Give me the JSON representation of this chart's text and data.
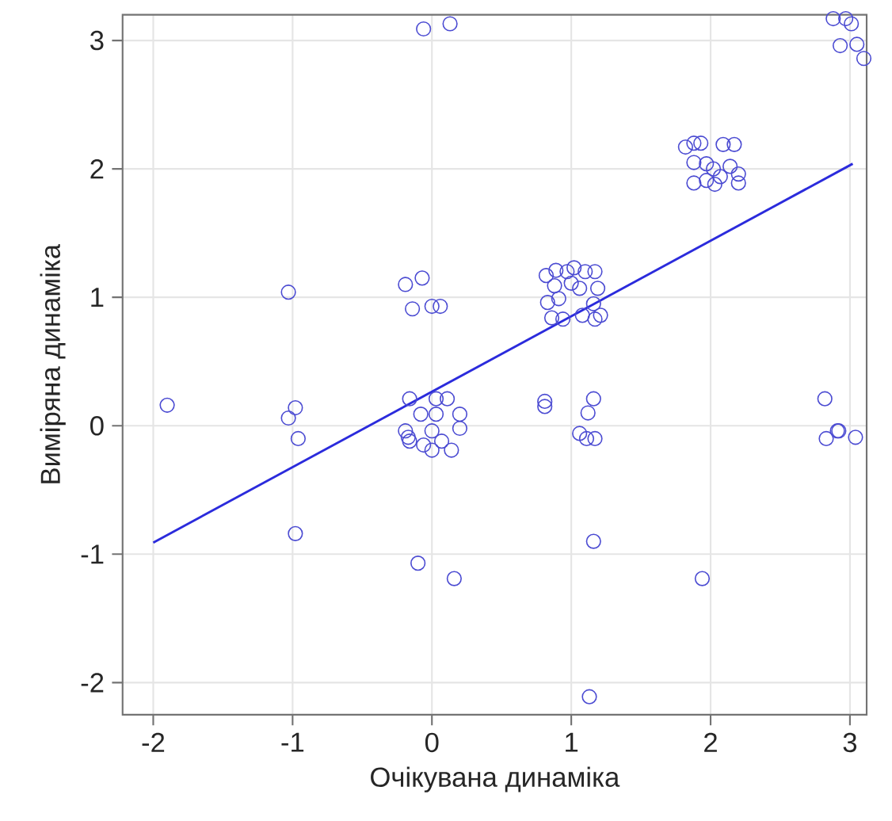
{
  "chart_data": {
    "type": "scatter",
    "xlabel": "Очікувана динаміка",
    "ylabel": "Виміряна динаміка",
    "xlim": [
      -2.22,
      3.12
    ],
    "ylim": [
      -2.25,
      3.2
    ],
    "xticks": [
      -2,
      -1,
      0,
      1,
      2,
      3
    ],
    "yticks": [
      -2,
      -1,
      0,
      1,
      2,
      3
    ],
    "grid": true,
    "series": [
      {
        "marker": "circle",
        "color": "#4b4bd2",
        "x": [
          -0.06,
          0.13,
          2.88,
          2.97,
          3.01,
          2.93,
          3.05,
          3.1,
          1.82,
          1.88,
          1.93,
          2.09,
          2.17,
          1.88,
          1.97,
          2.02,
          2.07,
          2.14,
          1.97,
          1.88,
          2.03,
          2.2,
          2.2,
          0.82,
          0.89,
          0.97,
          1.02,
          1.1,
          1.17,
          0.88,
          1.0,
          1.06,
          1.19,
          0.83,
          0.91,
          1.16,
          1.21,
          0.86,
          0.94,
          1.08,
          1.17,
          -0.19,
          -0.07,
          -0.14,
          0.0,
          0.06,
          -1.03,
          -1.9,
          -1.03,
          -0.98,
          -0.96,
          -0.98,
          -0.1,
          0.16,
          -0.16,
          0.03,
          0.11,
          -0.08,
          0.2,
          -0.19,
          0.0,
          0.2,
          -0.16,
          -0.06,
          0.07,
          0.0,
          0.14,
          -0.17,
          0.03,
          0.81,
          0.81,
          1.16,
          1.12,
          1.06,
          1.11,
          1.17,
          1.16,
          1.94,
          2.82,
          2.83,
          2.91,
          2.92,
          3.04,
          1.13
        ],
        "values": [
          3.09,
          3.13,
          3.17,
          3.17,
          3.13,
          2.96,
          2.97,
          2.86,
          2.17,
          2.2,
          2.2,
          2.19,
          2.19,
          2.05,
          2.04,
          2.0,
          1.94,
          2.02,
          1.91,
          1.89,
          1.88,
          1.89,
          1.96,
          1.17,
          1.21,
          1.2,
          1.23,
          1.2,
          1.2,
          1.09,
          1.11,
          1.07,
          1.07,
          0.96,
          0.99,
          0.95,
          0.86,
          0.84,
          0.83,
          0.86,
          0.83,
          1.1,
          1.15,
          0.91,
          0.93,
          0.93,
          1.04,
          0.16,
          0.06,
          0.14,
          -0.1,
          -0.84,
          -1.07,
          -1.19,
          0.21,
          0.21,
          0.21,
          0.09,
          0.09,
          -0.04,
          -0.04,
          -0.02,
          -0.12,
          -0.15,
          -0.12,
          -0.19,
          -0.19,
          -0.09,
          0.09,
          0.19,
          0.15,
          0.21,
          0.1,
          -0.06,
          -0.1,
          -0.1,
          -0.9,
          -1.19,
          0.21,
          -0.1,
          -0.04,
          -0.04,
          -0.09,
          -2.11
        ]
      },
      {
        "type": "line",
        "marker": "none",
        "color": "#2b2bdc",
        "x": [
          -2.0,
          3.02
        ],
        "values": [
          -0.91,
          2.04
        ]
      }
    ]
  }
}
